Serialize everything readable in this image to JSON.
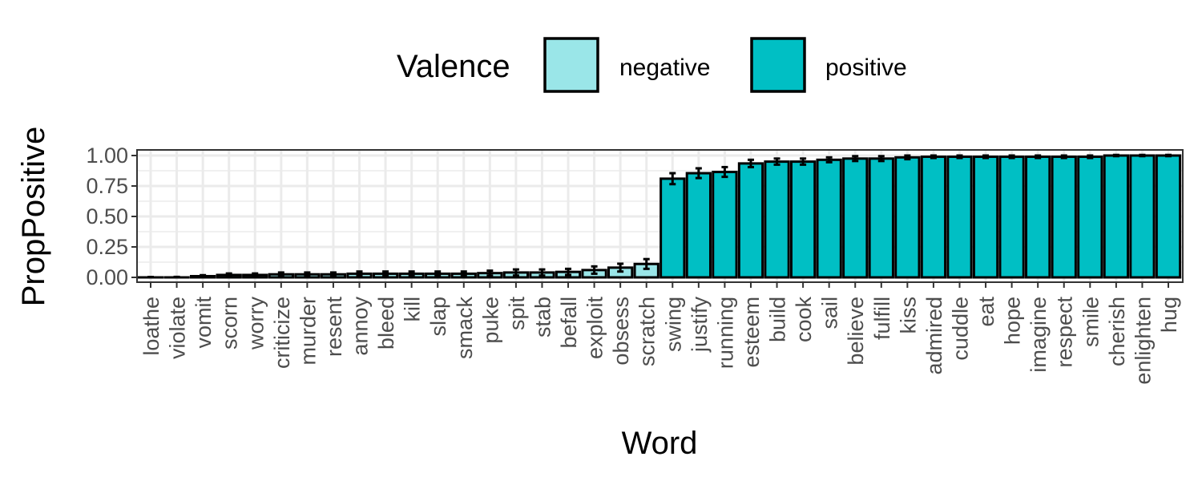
{
  "chart_data": {
    "type": "bar",
    "title": "",
    "xlabel": "Word",
    "ylabel": "PropPositive",
    "ylim": [
      0,
      1.0
    ],
    "yticks": [
      "0.00",
      "0.25",
      "0.50",
      "0.75",
      "1.00"
    ],
    "grid": true,
    "legend": {
      "title": "Valence",
      "position": "top",
      "entries": [
        {
          "label": "negative",
          "color": "#9ae6e8"
        },
        {
          "label": "positive",
          "color": "#00bfc4"
        }
      ]
    },
    "categories": [
      "loathe",
      "violate",
      "vomit",
      "scorn",
      "worry",
      "criticize",
      "murder",
      "resent",
      "annoy",
      "bleed",
      "kill",
      "slap",
      "smack",
      "puke",
      "spit",
      "stab",
      "befall",
      "exploit",
      "obsess",
      "scratch",
      "swing",
      "justify",
      "running",
      "esteem",
      "build",
      "cook",
      "sail",
      "believe",
      "fulfill",
      "kiss",
      "admired",
      "cuddle",
      "eat",
      "hope",
      "imagine",
      "respect",
      "smile",
      "cherish",
      "enlighten",
      "hug"
    ],
    "values": [
      0.0,
      0.0,
      0.01,
      0.02,
      0.02,
      0.025,
      0.025,
      0.025,
      0.03,
      0.03,
      0.03,
      0.03,
      0.03,
      0.035,
      0.04,
      0.04,
      0.045,
      0.06,
      0.08,
      0.11,
      0.81,
      0.855,
      0.865,
      0.935,
      0.95,
      0.95,
      0.965,
      0.975,
      0.975,
      0.985,
      0.99,
      0.99,
      0.99,
      0.99,
      0.99,
      0.99,
      0.99,
      1.0,
      1.0,
      1.0
    ],
    "errors": [
      0.003,
      0.004,
      0.008,
      0.012,
      0.012,
      0.015,
      0.015,
      0.015,
      0.018,
      0.018,
      0.018,
      0.018,
      0.018,
      0.02,
      0.025,
      0.025,
      0.025,
      0.03,
      0.032,
      0.04,
      0.045,
      0.04,
      0.04,
      0.03,
      0.025,
      0.025,
      0.02,
      0.02,
      0.02,
      0.015,
      0.01,
      0.01,
      0.01,
      0.01,
      0.01,
      0.01,
      0.01,
      0.005,
      0.005,
      0.005
    ],
    "valence": [
      "negative",
      "negative",
      "negative",
      "negative",
      "negative",
      "negative",
      "negative",
      "negative",
      "negative",
      "negative",
      "negative",
      "negative",
      "negative",
      "negative",
      "negative",
      "negative",
      "negative",
      "negative",
      "negative",
      "negative",
      "positive",
      "positive",
      "positive",
      "positive",
      "positive",
      "positive",
      "positive",
      "positive",
      "positive",
      "positive",
      "positive",
      "positive",
      "positive",
      "positive",
      "positive",
      "positive",
      "positive",
      "positive",
      "positive",
      "positive"
    ],
    "colors": {
      "negative": "#9ae6e8",
      "positive": "#00bfc4",
      "outline": "#000000",
      "grid": "#ebebeb",
      "panel_border": "#333333"
    }
  }
}
